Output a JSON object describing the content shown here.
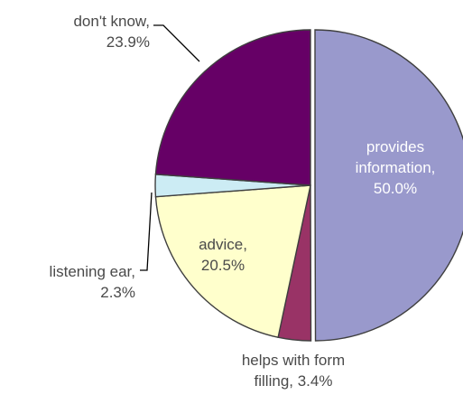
{
  "chart_data": {
    "type": "pie",
    "title": "",
    "slices": [
      {
        "id": "provides-information",
        "lines": [
          "provides",
          "information,",
          "50.0%"
        ],
        "value": 50.0,
        "color": "#9999cc",
        "text_color": "#ffffff",
        "inside": true
      },
      {
        "id": "helps-with-form-filling",
        "lines": [
          "helps with form",
          "filling, 3.4%"
        ],
        "value": 3.4,
        "color": "#993366",
        "text_color": "#4a4a4a",
        "inside": false
      },
      {
        "id": "advice",
        "lines": [
          "advice,",
          "20.5%"
        ],
        "value": 20.5,
        "color": "#ffffcc",
        "text_color": "#4a4a4a",
        "inside": true
      },
      {
        "id": "listening-ear",
        "lines": [
          "listening ear,",
          "2.3%"
        ],
        "value": 2.3,
        "color": "#ccecf4",
        "text_color": "#4a4a4a",
        "inside": false
      },
      {
        "id": "dont-know",
        "lines": [
          "don't know,",
          "23.9%"
        ],
        "value": 23.9,
        "color": "#660066",
        "text_color": "#4a4a4a",
        "inside": false
      }
    ]
  }
}
